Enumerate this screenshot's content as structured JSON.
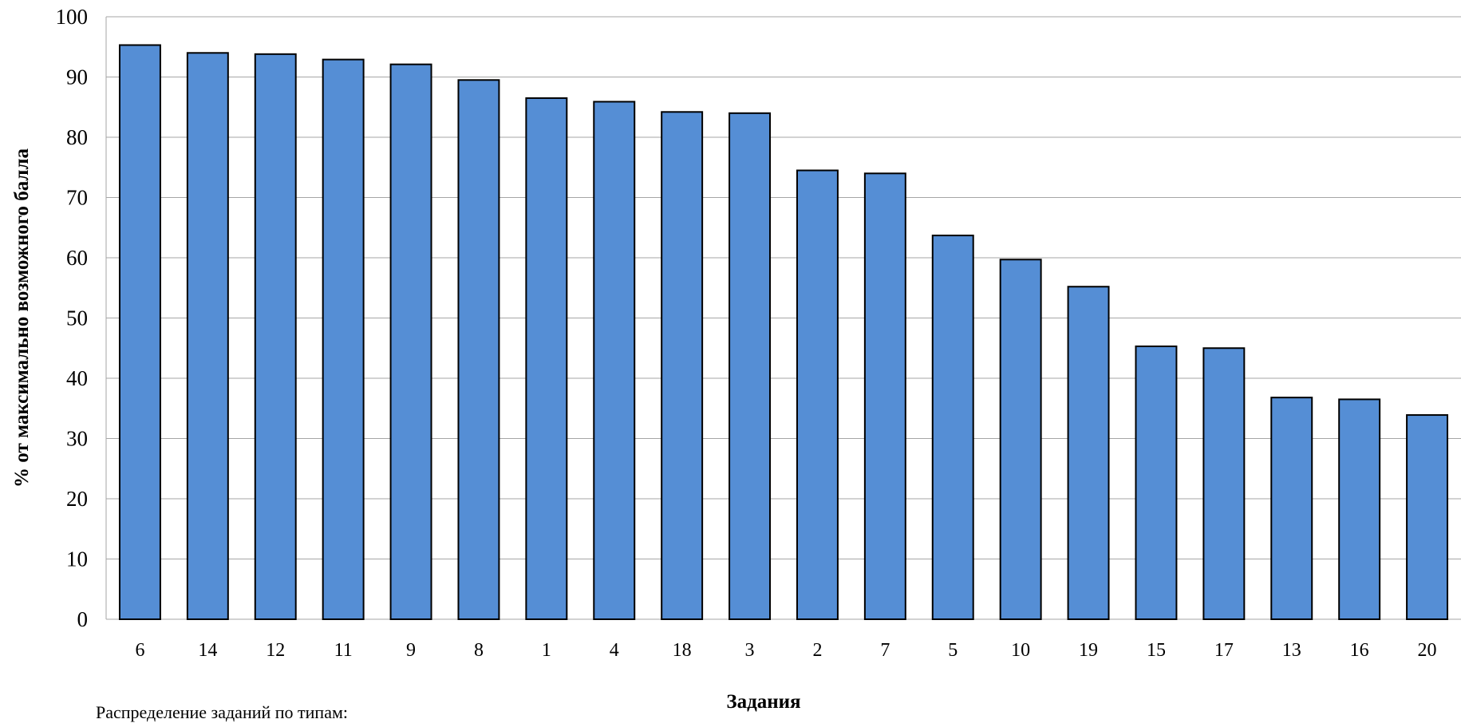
{
  "caption": "Распределение заданий по типам:",
  "chart_data": {
    "type": "bar",
    "categories": [
      "6",
      "14",
      "12",
      "11",
      "9",
      "8",
      "1",
      "4",
      "18",
      "3",
      "2",
      "7",
      "5",
      "10",
      "19",
      "15",
      "17",
      "13",
      "16",
      "20"
    ],
    "series": [
      {
        "values": [
          95.3,
          94.0,
          93.8,
          92.9,
          92.1,
          89.5,
          86.5,
          85.9,
          84.2,
          84.0,
          74.5,
          74.0,
          63.7,
          59.7,
          55.2,
          45.3,
          45.0,
          36.8,
          36.5,
          33.9
        ]
      }
    ],
    "xlabel": "Задания",
    "ylabel": "% от максимально возможного балла",
    "ylim": [
      0,
      100
    ],
    "yticks": [
      "0",
      "10",
      "20",
      "30",
      "40",
      "50",
      "60",
      "70",
      "80",
      "90",
      "100"
    ],
    "grid": true,
    "bar_color": "#558ed5",
    "bar_edge_color": "#000000",
    "grid_color": "#a6a6a6"
  }
}
